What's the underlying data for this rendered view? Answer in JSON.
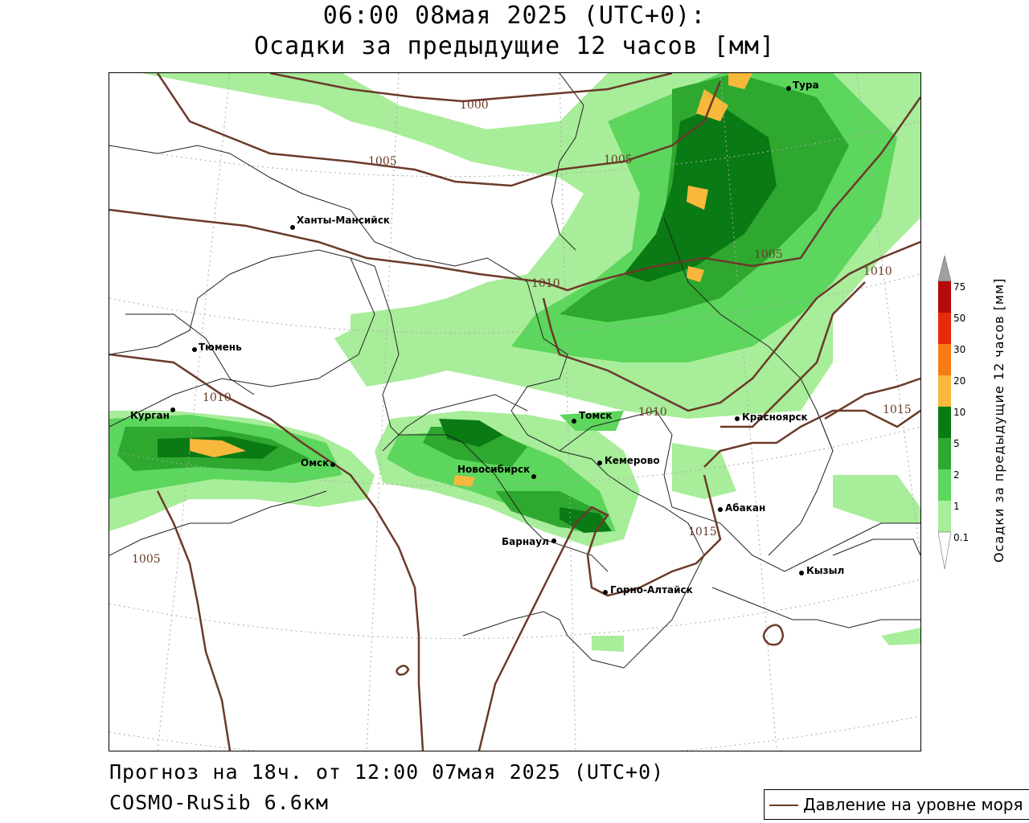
{
  "title": {
    "line1": "06:00 08мая 2025 (UTC+0):",
    "line2": "Осадки за предыдущие 12 часов [мм]"
  },
  "footer": {
    "forecast": "Прогноз на 18ч. от 12:00 07мая 2025 (UTC+0)",
    "model": "COSMO-RuSib 6.6км"
  },
  "legend": {
    "pressure_label": "Давление на уровне моря",
    "pressure_color": "#6b3a2a"
  },
  "colorbar": {
    "title": "Осадки за предыдущие 12 часов [мм]",
    "levels": [
      "0.1",
      "1",
      "2",
      "5",
      "10",
      "20",
      "30",
      "50",
      "75"
    ],
    "colors": [
      "#ffffff",
      "#a8ed9a",
      "#5cd65c",
      "#2ea82e",
      "#0a7a14",
      "#f8b83c",
      "#f87c14",
      "#e62a0a",
      "#b40a0a",
      "#a0a0a0"
    ]
  },
  "cities": [
    {
      "name": "Тура"
    },
    {
      "name": "Ханты-Мансийск"
    },
    {
      "name": "Тюмень"
    },
    {
      "name": "Курган"
    },
    {
      "name": "Омск"
    },
    {
      "name": "Томск"
    },
    {
      "name": "Красноярск"
    },
    {
      "name": "Новосибирск"
    },
    {
      "name": "Кемерово"
    },
    {
      "name": "Абакан"
    },
    {
      "name": "Барнаул"
    },
    {
      "name": "Кызыл"
    },
    {
      "name": "Горно-Алтайск"
    }
  ],
  "isobars": [
    {
      "label": "1000"
    },
    {
      "label": "1005"
    },
    {
      "label": "1005"
    },
    {
      "label": "1005"
    },
    {
      "label": "1010"
    },
    {
      "label": "1010"
    },
    {
      "label": "1010"
    },
    {
      "label": "1010"
    },
    {
      "label": "1015"
    },
    {
      "label": "1015"
    },
    {
      "label": "1005"
    }
  ]
}
